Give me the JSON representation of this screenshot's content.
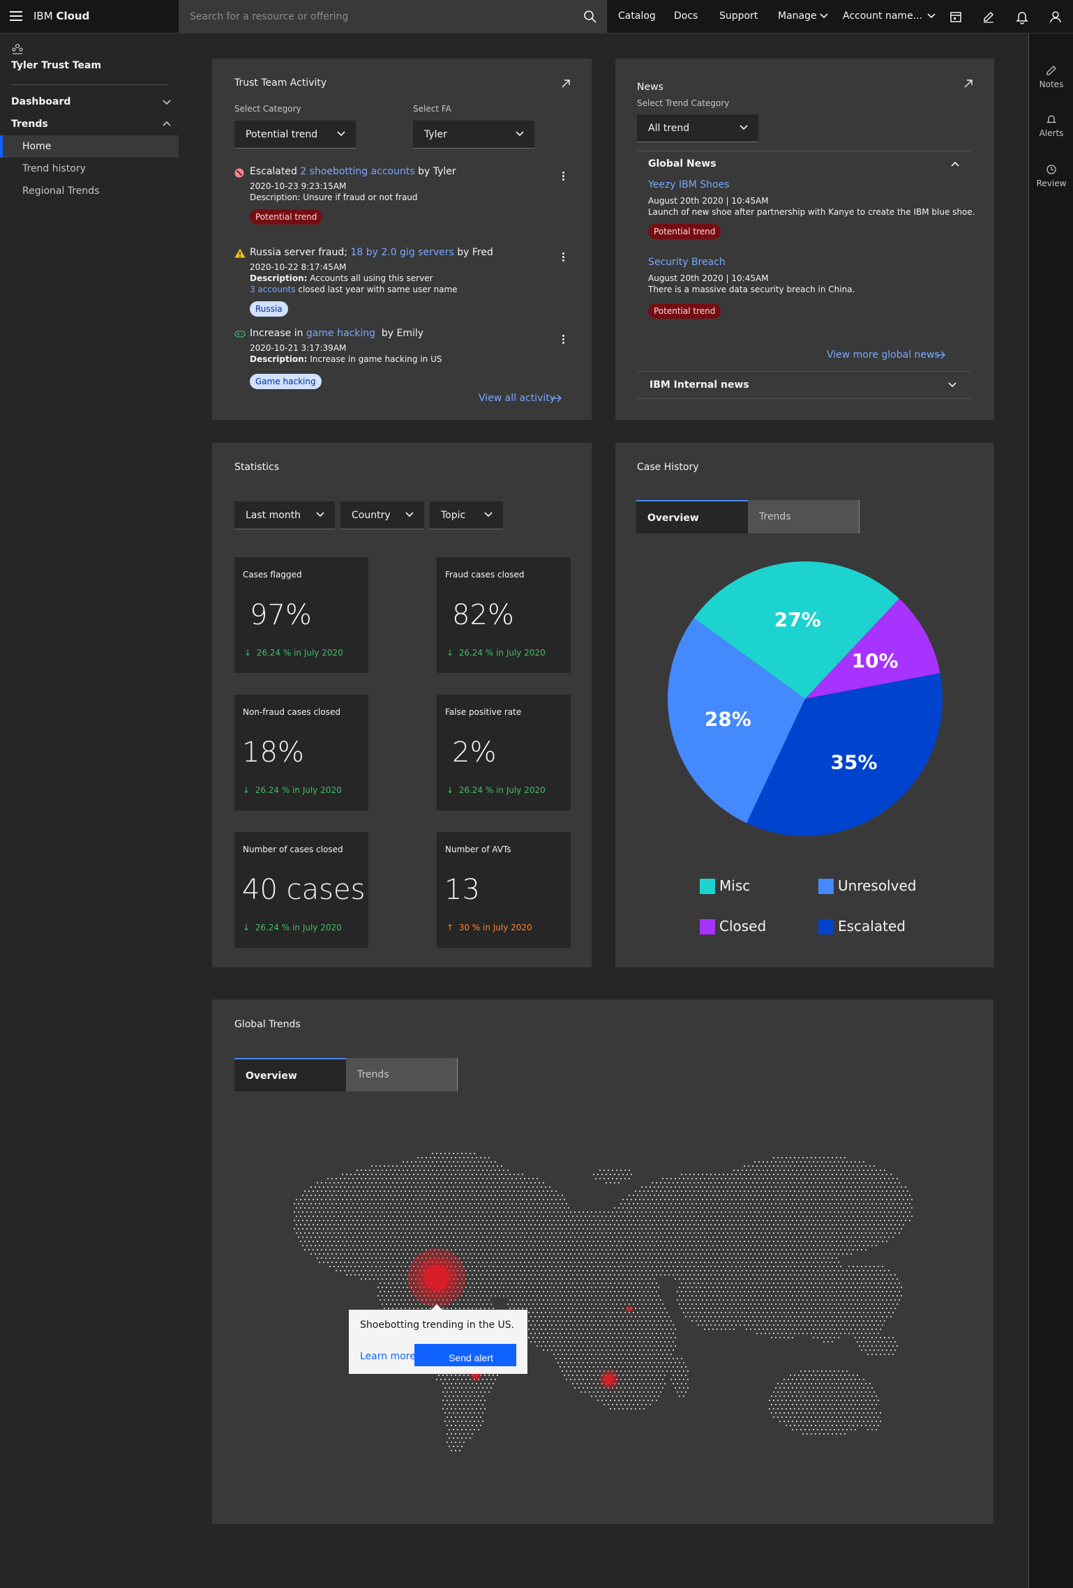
{
  "header": {
    "brand_prefix": "IBM",
    "brand_suffix": "Cloud",
    "search_placeholder": "Search for a resource or offering",
    "nav": [
      "Catalog",
      "Docs",
      "Support",
      "Manage"
    ],
    "account": "Account name..."
  },
  "sidebar": {
    "team": "Tyler Trust Team",
    "dashboard": "Dashboard",
    "trends": "Trends",
    "items": [
      "Home",
      "Trend history",
      "Regional Trends"
    ]
  },
  "rail": [
    "Notes",
    "Alerts",
    "Review"
  ],
  "activity": {
    "title": "Trust Team Activity",
    "category_label": "Select Category",
    "category_value": "Potential trend",
    "fa_label": "Select FA",
    "fa_value": "Tyler",
    "items": [
      {
        "pre": "Escalated",
        "link": "2 shoebotting accounts",
        "post": "by Tyler",
        "time": "2020-10-23 9:23:15AM",
        "desc_label": "",
        "desc": "Description: Unsure if fraud or not fraud",
        "tag": "Potential trend"
      },
      {
        "pre": "Russia server fraud;",
        "link": "18 by 2.0 gig servers",
        "post": "by Fred",
        "time": "2020-10-22 8:17:45AM",
        "desc_label": "Description:",
        "desc": "Accounts all using this server",
        "extra_link": "3 accounts",
        "extra": "closed last year with same user name",
        "tag": "Russia"
      },
      {
        "pre": "Increase in",
        "link": "game hacking",
        "post": "by Emily",
        "time": "2020-10-21 3:17:39AM",
        "desc_label": "Description:",
        "desc": "Increase in game hacking in US",
        "tag": "Game hacking"
      }
    ],
    "view_all": "View all activity"
  },
  "news": {
    "title": "News",
    "category_label": "Select Trend Category",
    "category_value": "All trend",
    "global_title": "Global News",
    "items": [
      {
        "title": "Yeezy IBM Shoes",
        "date": "August 20th 2020 | 10:45AM",
        "desc": "Launch of new shoe after partnership with Kanye to create the IBM blue shoe.",
        "tag": "Potential trend"
      },
      {
        "title": "Security Breach",
        "date": "August 20th 2020 | 10:45AM",
        "desc": "There is a massive data security breach in China.",
        "tag": "Potential trend"
      }
    ],
    "view_more": "View more global news",
    "internal_title": "IBM Internal news"
  },
  "statistics": {
    "title": "Statistics",
    "filters": [
      "Last month",
      "Country",
      "Topic"
    ],
    "tiles": [
      {
        "title": "Cases flagged",
        "value": "97%",
        "delta": "26.24 % in July 2020",
        "trend": "down"
      },
      {
        "title": "Fraud cases closed",
        "value": "82%",
        "delta": "26.24 % in July 2020",
        "trend": "down"
      },
      {
        "title": "Non-fraud cases closed",
        "value": "18%",
        "delta": "26.24 % in July 2020",
        "trend": "down"
      },
      {
        "title": "False positive rate",
        "value": "2%",
        "delta": "26.24 % in July 2020",
        "trend": "down"
      },
      {
        "title": "Number of cases closed",
        "value": "40 cases",
        "delta": "26.24 % in July 2020",
        "trend": "down"
      },
      {
        "title": "Number of AVTs",
        "value": "13",
        "delta": "30 % in July 2020",
        "trend": "up"
      }
    ]
  },
  "case_history": {
    "title": "Case History",
    "tabs": [
      "Overview",
      "Trends"
    ]
  },
  "chart_data": {
    "type": "pie",
    "categories": [
      "Misc",
      "Closed",
      "Escalated",
      "Unresolved"
    ],
    "values": [
      27,
      10,
      35,
      28
    ],
    "labels": [
      "27%",
      "10%",
      "35%",
      "28%"
    ],
    "colors": [
      "#1dd3d0",
      "#a832ff",
      "#0043ce",
      "#4589ff"
    ],
    "legend": [
      "Misc",
      "Unresolved",
      "Closed",
      "Escalated"
    ],
    "legend_colors": [
      "#1dd3d0",
      "#4589ff",
      "#a832ff",
      "#0043ce"
    ]
  },
  "global_trends": {
    "title": "Global Trends",
    "tabs": [
      "Overview",
      "Trends"
    ],
    "tooltip_text": "Shoebotting trending in the US.",
    "learn_more": "Learn more",
    "send_alert": "Send alert"
  }
}
